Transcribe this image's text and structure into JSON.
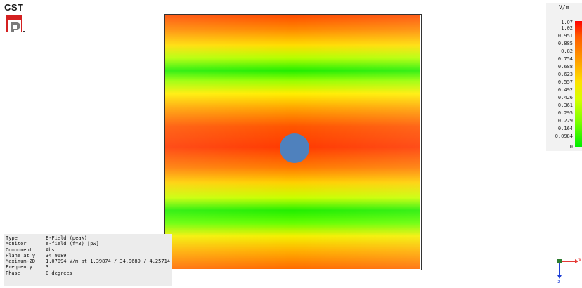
{
  "app": {
    "logo_text": "CST"
  },
  "legend": {
    "unit": "V/m",
    "labels": [
      "1.07",
      "1.02",
      "0.951",
      "0.885",
      "0.82",
      "0.754",
      "0.688",
      "0.623",
      "0.557",
      "0.492",
      "0.426",
      "0.361",
      "0.295",
      "0.229",
      "0.164",
      "0.0984",
      "0"
    ],
    "colors": {
      "max": "#ff0000",
      "mid": "#ffe000",
      "min": "#00ee00"
    }
  },
  "plot": {
    "background": "colour map of E-field magnitude with horizontal bands",
    "object_color": "#4f81bd"
  },
  "info": {
    "rows": [
      {
        "key": "Type",
        "value": "E-Field (peak)"
      },
      {
        "key": "Monitor",
        "value": "e-field (f=3) [pw]"
      },
      {
        "key": "Component",
        "value": "Abs"
      },
      {
        "key": "Plane at y",
        "value": "34.9689"
      },
      {
        "key": "Maximum-2D",
        "value": "1.07094 V/m at 1.39874 / 34.9689 / 4.25714"
      },
      {
        "key": "Frequency",
        "value": "3"
      },
      {
        "key": "Phase",
        "value": "0 degrees"
      }
    ]
  },
  "axes": {
    "x_label": "x",
    "z_label": "z",
    "colors": {
      "x": "#e53935",
      "z": "#1e3fd6"
    }
  }
}
